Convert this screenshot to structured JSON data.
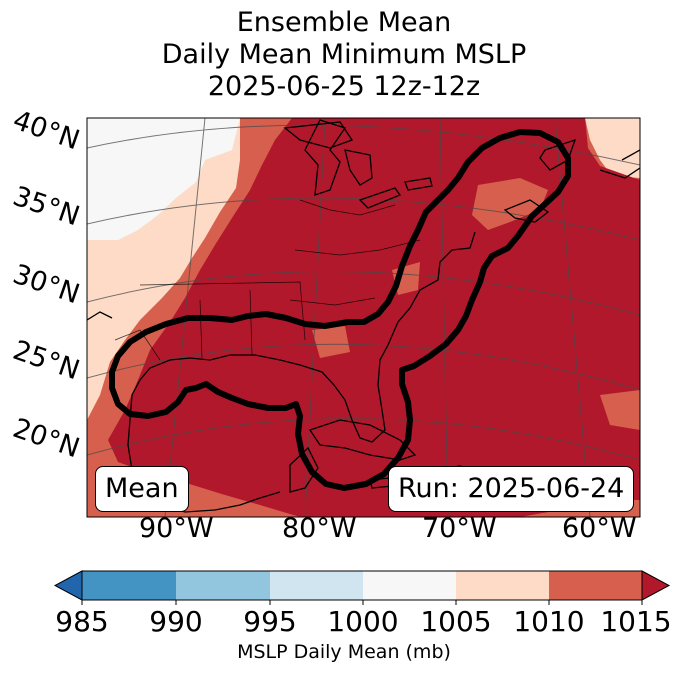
{
  "header": {
    "title_line1": "Ensemble Mean",
    "title_line2": "Daily Mean Minimum MSLP",
    "title_line3": "2025-06-25 12z-12z"
  },
  "map": {
    "region": "Eastern United States and western North Atlantic",
    "lat_labels": [
      "40°N",
      "35°N",
      "30°N",
      "25°N",
      "20°N"
    ],
    "lon_labels": [
      "90°W",
      "80°W",
      "70°W",
      "60°W"
    ],
    "stat_label": "Mean",
    "run_label": "Run: 2025-06-24",
    "contour_color": "#000000",
    "fill_colors": {
      "1005-1010": "#fddbc7",
      "1010-1015": "#d6604d",
      ">1015": "#b2182b",
      "1000-1005": "#f7f7f7"
    }
  },
  "colorbar": {
    "ticks": [
      "985",
      "990",
      "995",
      "1000",
      "1005",
      "1010",
      "1015"
    ],
    "colors": [
      "#2166ac",
      "#4393c3",
      "#92c5de",
      "#d1e5f0",
      "#f7f7f7",
      "#fddbc7",
      "#d6604d",
      "#b2182b"
    ],
    "label": "MSLP Daily Mean (mb)"
  }
}
